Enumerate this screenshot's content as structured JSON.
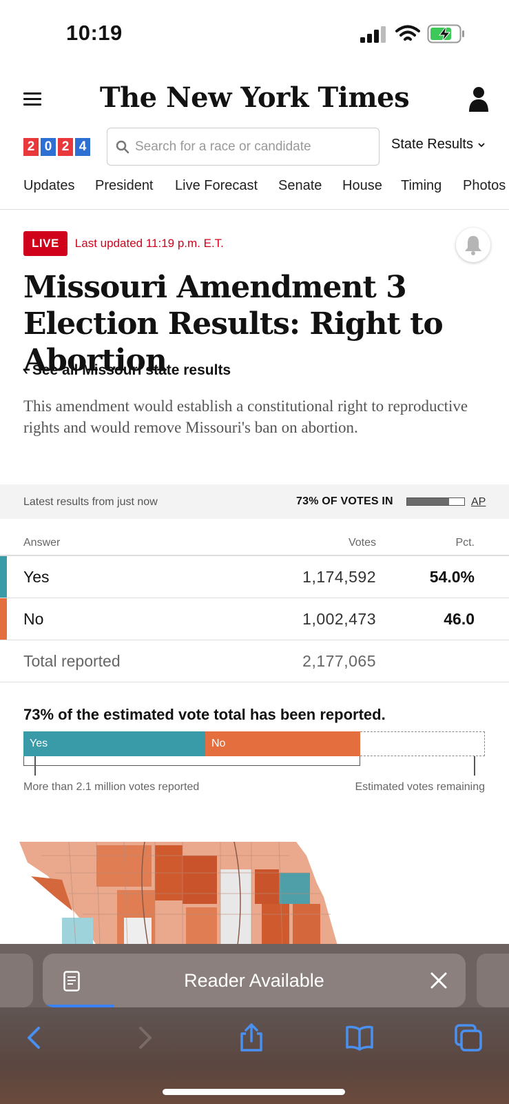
{
  "status_bar": {
    "time": "10:19",
    "icons": [
      "cellular-signal-icon",
      "wifi-icon",
      "battery-charging-icon"
    ]
  },
  "masthead": {
    "logo": "The New York Times",
    "menu_icon": "hamburger-menu-icon",
    "account_icon": "user-account-icon"
  },
  "search_row": {
    "badge_digits": [
      "2",
      "0",
      "2",
      "4"
    ],
    "badge_colors": [
      "#e8383b",
      "#2e6fd3",
      "#e8383b",
      "#2e6fd3"
    ],
    "search_placeholder": "Search for a race or candidate",
    "state_results_label": "State Results"
  },
  "nav_tabs": [
    "Updates",
    "President",
    "Live Forecast",
    "Senate",
    "House",
    "Timing",
    "Photos"
  ],
  "article": {
    "live_label": "LIVE",
    "last_updated": "Last updated 11:19 p.m. E.T.",
    "headline": "Missouri Amendment 3 Election Results: Right to Abortion",
    "back_link": "‹ See all Missouri state results",
    "summary": "This amendment would establish a constitutional right to reproductive rights and would remove Missouri's ban on abortion."
  },
  "results_banner": {
    "latest": "Latest results from just now",
    "votes_in": "73% OF VOTES IN",
    "votes_in_fraction": 0.73,
    "source": "AP"
  },
  "results_table": {
    "headers": {
      "answer": "Answer",
      "votes": "Votes",
      "pct": "Pct."
    },
    "rows": [
      {
        "answer": "Yes",
        "votes": "1,174,592",
        "pct": "54.0%",
        "color": "#3a9ba8"
      },
      {
        "answer": "No",
        "votes": "1,002,473",
        "pct": "46.0",
        "color": "#e56e3f"
      }
    ],
    "total": {
      "label": "Total reported",
      "votes": "2,177,065"
    }
  },
  "estimated": {
    "title": "73% of the estimated vote total has been reported.",
    "yes_label": "Yes",
    "no_label": "No",
    "yes_fraction": 0.394,
    "no_fraction": 0.336,
    "reported_label": "More than 2.1 million votes reported",
    "remaining_label": "Estimated votes remaining"
  },
  "map": {
    "description_icon": "missouri-county-map"
  },
  "safari": {
    "reader_label": "Reader Available",
    "toolbar_icons": [
      "back-arrow-icon",
      "forward-arrow-icon",
      "share-icon",
      "bookmarks-icon",
      "tabs-icon"
    ]
  }
}
